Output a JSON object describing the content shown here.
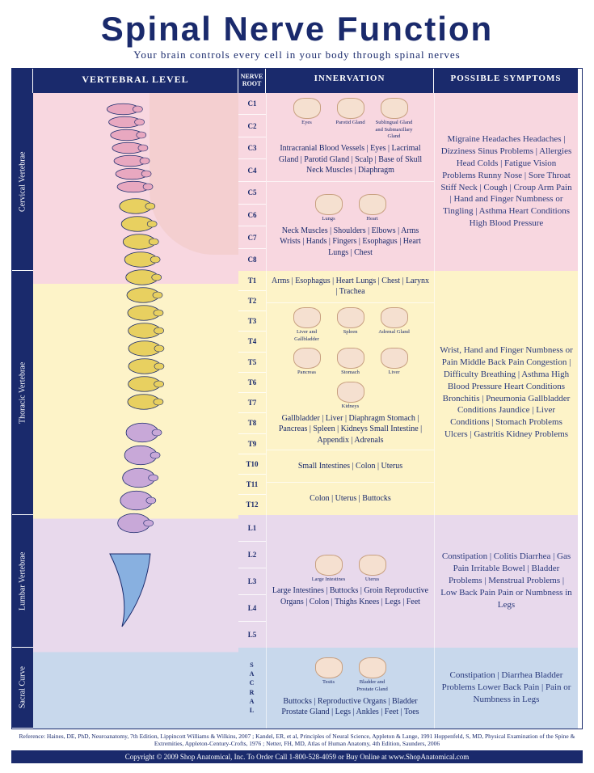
{
  "title": "Spinal Nerve Function",
  "subtitle": "Your brain controls every cell in your body through spinal nerves",
  "headers": {
    "vertebral": "VERTEBRAL LEVEL",
    "nerve": "NERVE ROOT",
    "innervation": "INNERVATION",
    "symptoms": "POSSIBLE SYMPTOMS"
  },
  "colors": {
    "navy": "#1a2a6c",
    "cervical": "#f8d7e0",
    "thoracic": "#fdf3c8",
    "lumbar": "#e8d9ec",
    "sacral": "#c8d8ec"
  },
  "sections": [
    {
      "id": "cervical",
      "label": "Cervical Vertebrae",
      "bg": "bg-cervical",
      "roots": [
        "C1",
        "C2",
        "C3",
        "C4",
        "C5",
        "C6",
        "C7",
        "C8"
      ],
      "innervation": [
        {
          "organs": [
            "Eyes",
            "Parotid Gland",
            "Sublingual Gland and Submaxillary Gland"
          ],
          "text": "Intracranial Blood Vessels | Eyes | Lacrimal Gland | Parotid Gland | Scalp | Base of Skull Neck Muscles | Diaphragm"
        },
        {
          "organs": [
            "Lungs",
            "Heart"
          ],
          "text": "Neck Muscles | Shoulders | Elbows | Arms Wrists | Hands | Fingers | Esophagus | Heart Lungs | Chest"
        }
      ],
      "symptoms": "Migraine Headaches Headaches | Dizziness Sinus Problems | Allergies Head Colds | Fatigue Vision Problems Runny Nose | Sore Throat Stiff Neck | Cough | Croup Arm Pain | Hand and Finger Numbness or Tingling | Asthma Heart Conditions High Blood Pressure"
    },
    {
      "id": "thoracic",
      "label": "Thoracic Vertebrae",
      "bg": "bg-thoracic",
      "roots": [
        "T1",
        "T2",
        "T3",
        "T4",
        "T5",
        "T6",
        "T7",
        "T8",
        "T9",
        "T10",
        "T11",
        "T12"
      ],
      "innervation": [
        {
          "organs": [],
          "text": "Arms | Esophagus | Heart Lungs | Chest | Larynx | Trachea"
        },
        {
          "organs": [
            "Liver and Gallbladder",
            "Spleen",
            "Adrenal Gland",
            "Pancreas",
            "Stomach",
            "Liver",
            "Kidneys"
          ],
          "text": "Gallbladder | Liver | Diaphragm Stomach | Pancreas | Spleen | Kidneys Small Intestine | Appendix | Adrenals"
        },
        {
          "organs": [],
          "text": "Small Intestines | Colon | Uterus"
        },
        {
          "organs": [],
          "text": "Colon | Uterus | Buttocks"
        }
      ],
      "symptoms": "Wrist, Hand and Finger Numbness or Pain Middle Back Pain Congestion | Difficulty Breathing | Asthma High Blood Pressure Heart Conditions Bronchitis | Pneumonia Gallbladder Conditions Jaundice | Liver Conditions | Stomach Problems Ulcers | Gastritis Kidney Problems"
    },
    {
      "id": "lumbar",
      "label": "Lumbar Vertebrae",
      "bg": "bg-lumbar",
      "roots": [
        "L1",
        "L2",
        "L3",
        "L4",
        "L5"
      ],
      "innervation": [
        {
          "organs": [
            "Large Intestines",
            "Uterus"
          ],
          "text": "Large Intestines | Buttocks | Groin Reproductive Organs | Colon | Thighs Knees | Legs | Feet"
        }
      ],
      "symptoms": "Constipation | Colitis Diarrhea | Gas Pain Irritable Bowel | Bladder Problems | Menstrual Problems | Low Back Pain Pain or Numbness in Legs"
    },
    {
      "id": "sacral",
      "label": "Sacral Curve",
      "bg": "bg-sacral",
      "roots": [
        "S",
        "A",
        "C",
        "R",
        "A",
        "L"
      ],
      "sacralVert": true,
      "innervation": [
        {
          "organs": [
            "Testis",
            "Bladder and Prostate Gland"
          ],
          "text": "Buttocks | Reproductive Organs | Bladder Prostate Gland | Legs | Ankles | Feet | Toes"
        }
      ],
      "symptoms": "Constipation | Diarrhea Bladder Problems Lower Back Pain | Pain or Numbness in Legs"
    }
  ],
  "references": "Reference: Haines, DE, PhD, Neuroanatomy, 7th Edition, Lippincott Williams & Wilkins, 2007 ; Kandel, ER, et al, Principles of Neural Science, Appleton & Lange, 1991 Hoppenfeld, S, MD, Physical Examination of the Spine & Extremities, Appleton-Century-Crofts, 1976 ; Netter, FH, MD, Atlas of Human Anatomy, 4th Edition, Saunders, 2006",
  "copyright": "Copyright © 2009 Shop Anatomical, Inc. To Order Call 1-800-528-4059 or Buy Online at www.ShopAnatomical.com"
}
